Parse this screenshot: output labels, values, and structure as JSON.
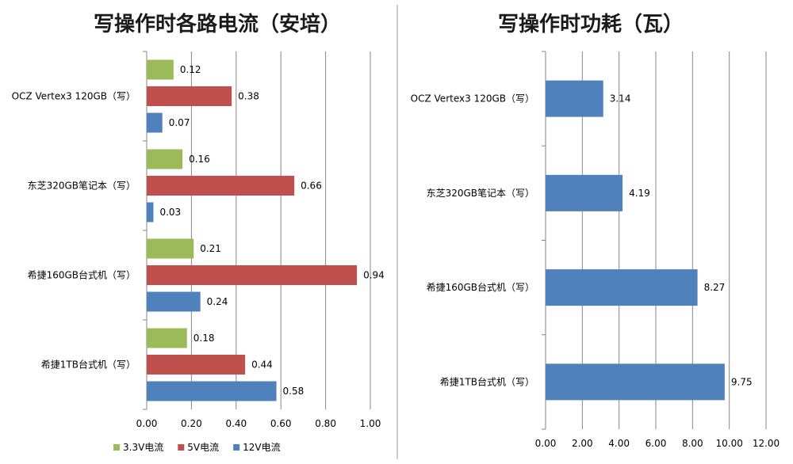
{
  "chart_data": [
    {
      "type": "bar",
      "orientation": "horizontal",
      "title": "写操作时各路电流（安培）",
      "categories": [
        "OCZ Vertex3  120GB（写）",
        "东芝320GB笔记本（写）",
        "希捷160GB台式机（写）",
        "希捷1TB台式机（写）"
      ],
      "series": [
        {
          "name": "3.3V电流",
          "color": "#9bbb59",
          "values": [
            0.12,
            0.16,
            0.21,
            0.18
          ],
          "labels": [
            "0.12",
            "0.16",
            "0.21",
            "0.18"
          ]
        },
        {
          "name": "5V电流",
          "color": "#c0504d",
          "values": [
            0.38,
            0.66,
            0.94,
            0.44
          ],
          "labels": [
            "0.38",
            "0.66",
            "0.94",
            "0.44"
          ]
        },
        {
          "name": "12V电流",
          "color": "#4f81bd",
          "values": [
            0.07,
            0.03,
            0.24,
            0.58
          ],
          "labels": [
            "0.07",
            "0.03",
            "0.24",
            "0.58"
          ]
        }
      ],
      "xlim": [
        0,
        1.0
      ],
      "ticks": [
        "0.00",
        "0.20",
        "0.40",
        "0.60",
        "0.80",
        "1.00"
      ],
      "grid": true,
      "legend": "bottom"
    },
    {
      "type": "bar",
      "orientation": "horizontal",
      "title": "写操作时功耗（瓦）",
      "categories": [
        "OCZ Vertex3  120GB（写）",
        "东芝320GB笔记本（写）",
        "希捷160GB台式机（写）",
        "希捷1TB台式机（写）"
      ],
      "series": [
        {
          "color": "#4f81bd",
          "values": [
            3.14,
            4.19,
            8.27,
            9.75
          ],
          "labels": [
            "3.14",
            "4.19",
            "8.27",
            "9.75"
          ]
        }
      ],
      "xlim": [
        0,
        12.0
      ],
      "ticks": [
        "0.00",
        "2.00",
        "4.00",
        "6.00",
        "8.00",
        "10.00",
        "12.00"
      ],
      "grid": true,
      "legend": "none"
    }
  ]
}
